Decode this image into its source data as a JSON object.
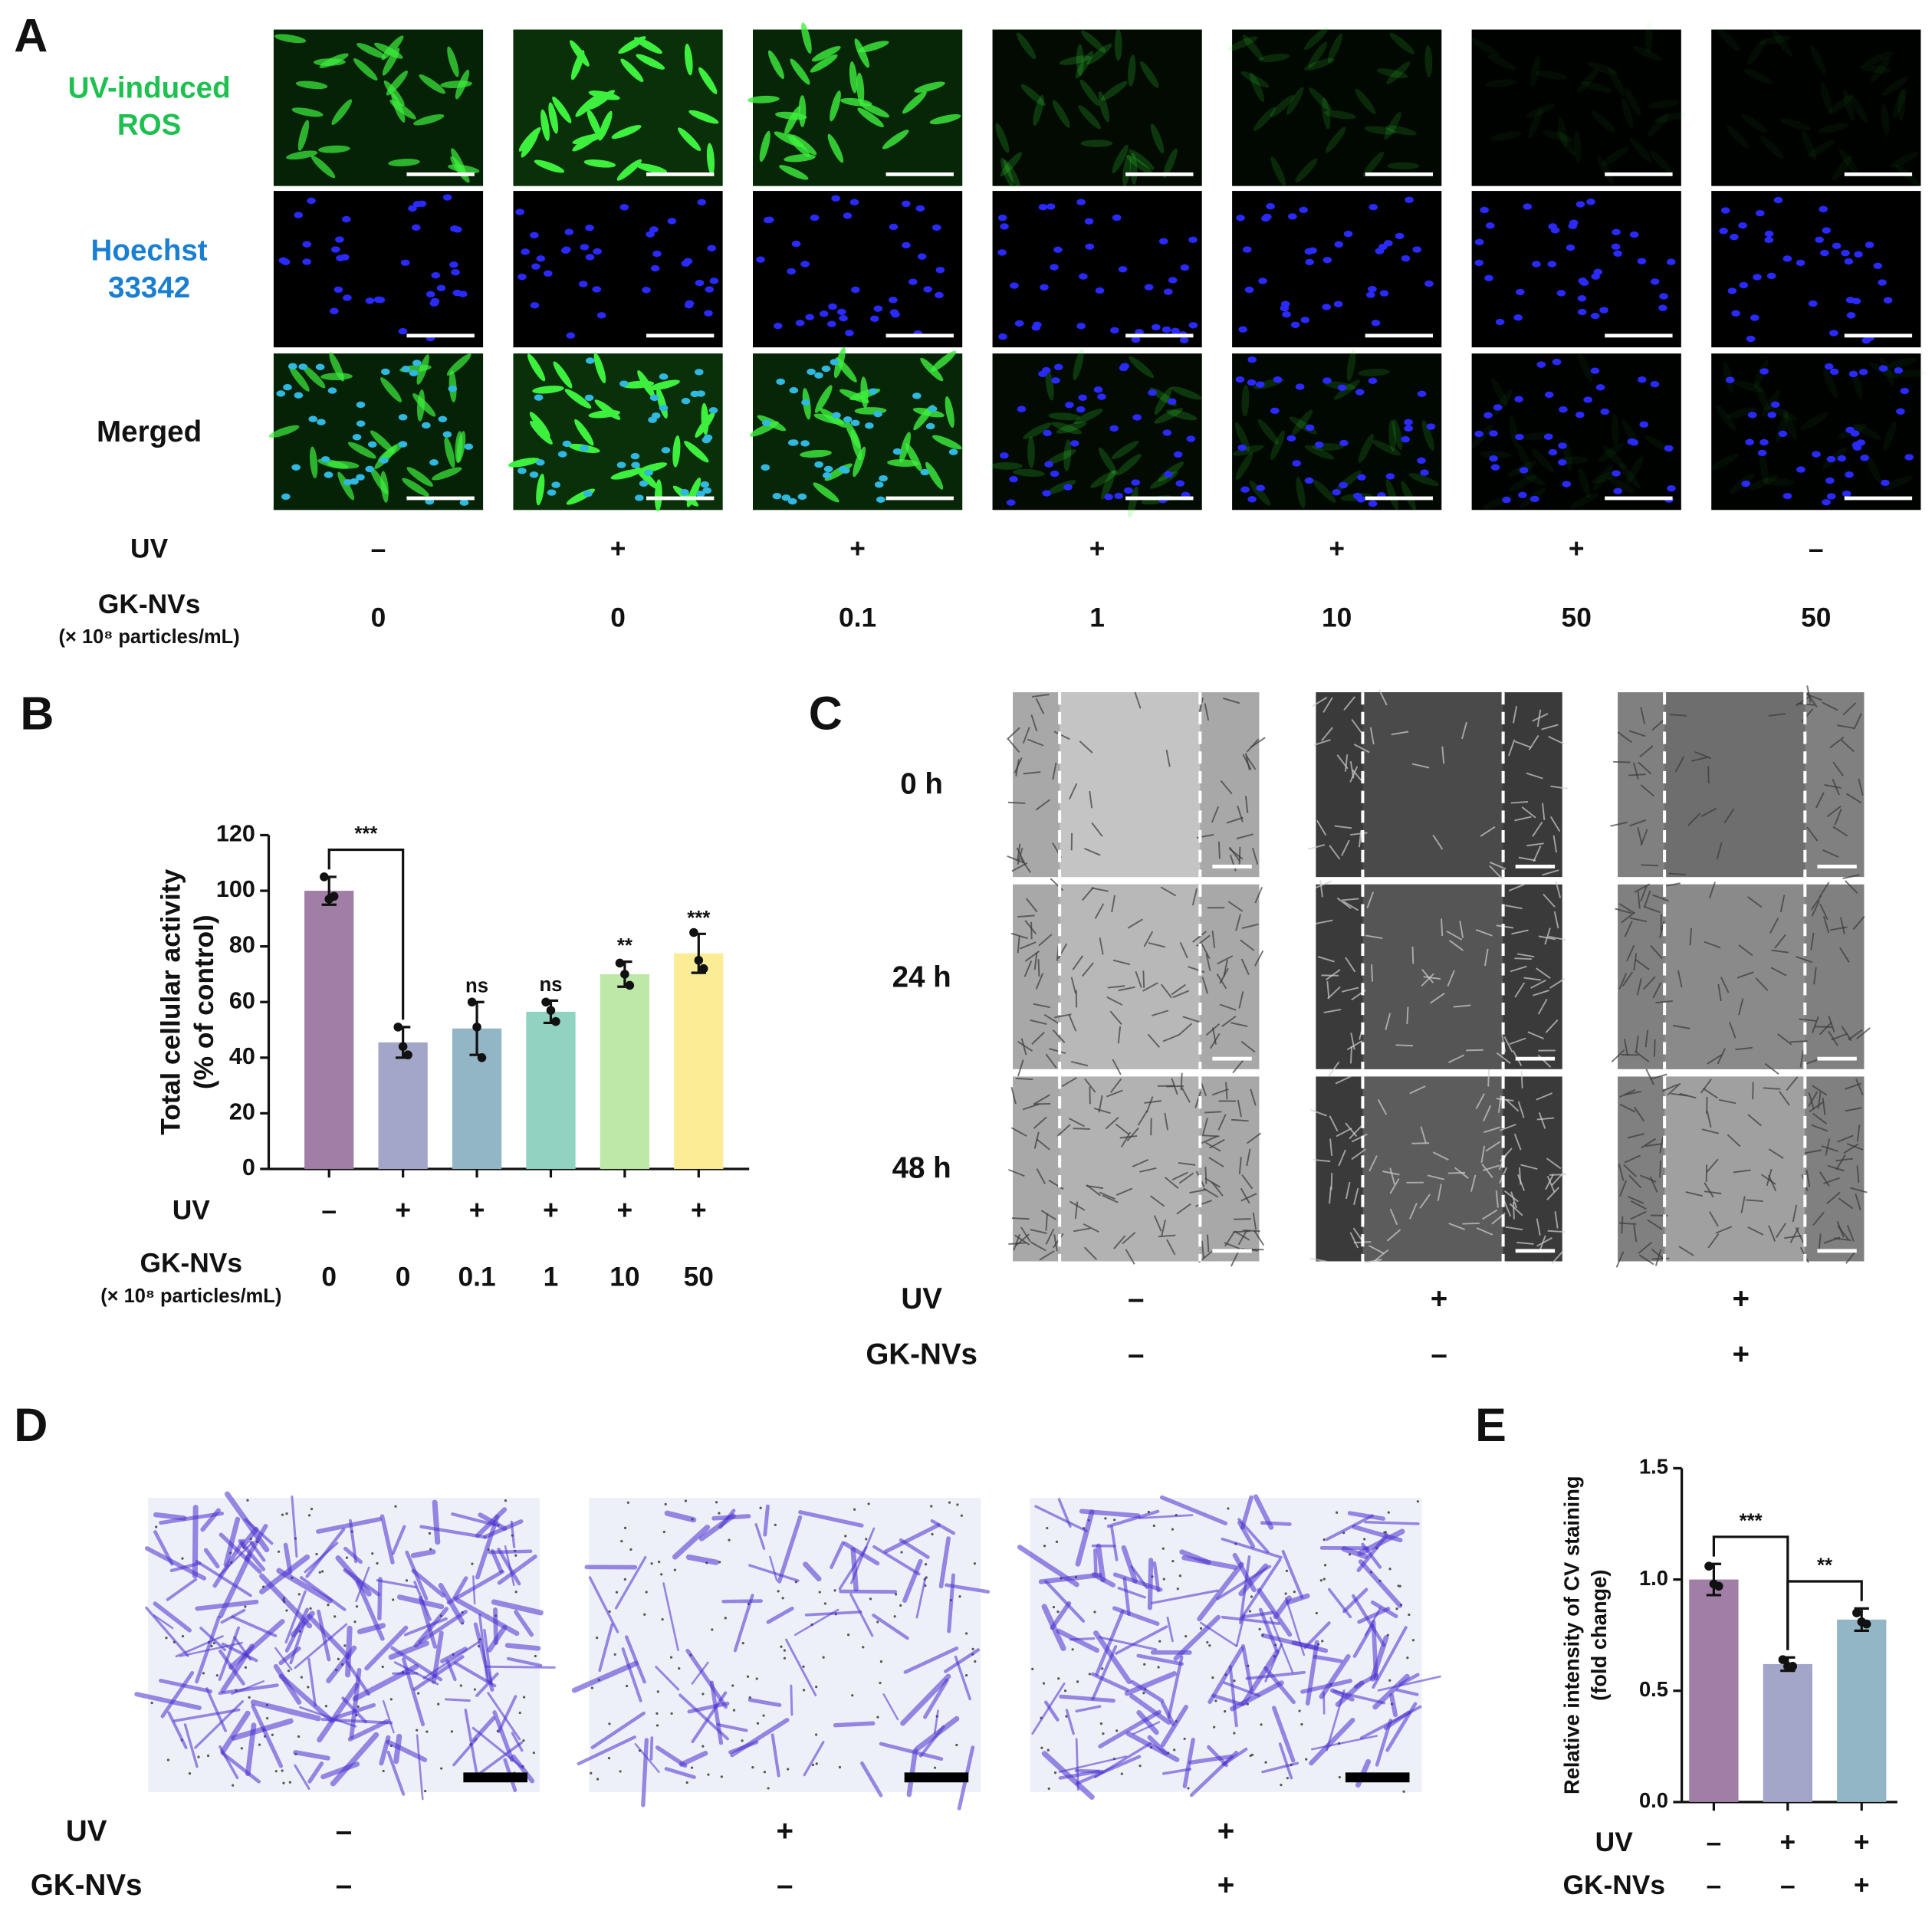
{
  "panels": {
    "A": {
      "letter": "A",
      "rows": [
        [
          "UV-induced",
          "ROS"
        ],
        [
          "Hoechst",
          "33342"
        ],
        [
          "Merged"
        ]
      ],
      "conditions": [
        {
          "name": "UV",
          "values": [
            "–",
            "+",
            "+",
            "+",
            "+",
            "+",
            "–"
          ]
        },
        {
          "name": "GK-NVs",
          "note": "(× 10⁸ particles/mL)",
          "values": [
            0,
            0,
            0.1,
            1,
            10,
            50,
            50
          ]
        }
      ]
    },
    "C": {
      "letter": "C",
      "rows": [
        "0 h",
        "24 h",
        "48 h"
      ],
      "conditions": [
        {
          "name": "UV",
          "values": [
            "–",
            "+",
            "+"
          ]
        },
        {
          "name": "GK-NVs",
          "values": [
            "–",
            "–",
            "+"
          ]
        }
      ]
    },
    "D": {
      "letter": "D",
      "conditions": [
        {
          "name": "UV",
          "values": [
            "–",
            "+",
            "+"
          ]
        },
        {
          "name": "GK-NVs",
          "values": [
            "–",
            "–",
            "+"
          ]
        }
      ]
    }
  },
  "chart_data": [
    {
      "type": "bar",
      "letter": "B",
      "y_label": [
        "Total cellular activity",
        "(% of control)"
      ],
      "ylim": [
        0,
        120
      ],
      "yticks": [
        0,
        20,
        40,
        60,
        80,
        100,
        120
      ],
      "values": [
        100,
        45.5,
        50.5,
        56.5,
        70,
        77.5
      ],
      "errors": [
        5,
        5.5,
        9.5,
        4,
        4.5,
        7
      ],
      "points": [
        [
          105,
          97,
          98
        ],
        [
          51,
          44,
          41
        ],
        [
          60,
          51,
          40
        ],
        [
          60,
          57,
          53
        ],
        [
          74,
          70,
          66
        ],
        [
          85,
          75,
          72
        ]
      ],
      "colors": [
        "#a07ea6",
        "#a3a6c9",
        "#93b6c6",
        "#8fd3c0",
        "#bde8a8",
        "#fcec96"
      ],
      "significance": [
        null,
        null,
        "ns",
        "ns",
        "**",
        "***"
      ],
      "comparisons": [
        {
          "label": "***",
          "between": [
            0,
            1
          ]
        }
      ],
      "conditions": [
        {
          "name": "UV",
          "values": [
            "–",
            "+",
            "+",
            "+",
            "+",
            "+"
          ]
        },
        {
          "name": "GK-NVs",
          "note": "(× 10⁸ particles/mL)",
          "values": [
            0,
            0,
            0.1,
            1,
            10,
            50
          ]
        }
      ]
    },
    {
      "type": "bar",
      "letter": "E",
      "y_label": [
        "Relative intensity of CV staining",
        "(fold change)"
      ],
      "ylim": [
        0,
        1.5
      ],
      "yticks": [
        {
          "value": 0,
          "label": "0.0"
        },
        {
          "value": 0.5,
          "label": "0.5"
        },
        {
          "value": 1,
          "label": "1.0"
        },
        {
          "value": 1.5,
          "label": "1.5"
        }
      ],
      "values": [
        1.0,
        0.62,
        0.82
      ],
      "errors": [
        0.07,
        0.03,
        0.05
      ],
      "points": [
        [
          1.06,
          0.98,
          0.97
        ],
        [
          0.64,
          0.61,
          0.61
        ],
        [
          0.85,
          0.81,
          0.8
        ]
      ],
      "colors": [
        "#a07ea6",
        "#a3a6c9",
        "#93b6c6"
      ],
      "significance": [
        null,
        null,
        null
      ],
      "comparisons": [
        {
          "label": "***",
          "between": [
            0,
            1
          ]
        },
        {
          "label": "**",
          "between": [
            1,
            2
          ]
        }
      ],
      "conditions": [
        {
          "name": "UV",
          "values": [
            "–",
            "+",
            "+"
          ]
        },
        {
          "name": "GK-NVs",
          "values": [
            "–",
            "–",
            "+"
          ]
        }
      ]
    }
  ]
}
